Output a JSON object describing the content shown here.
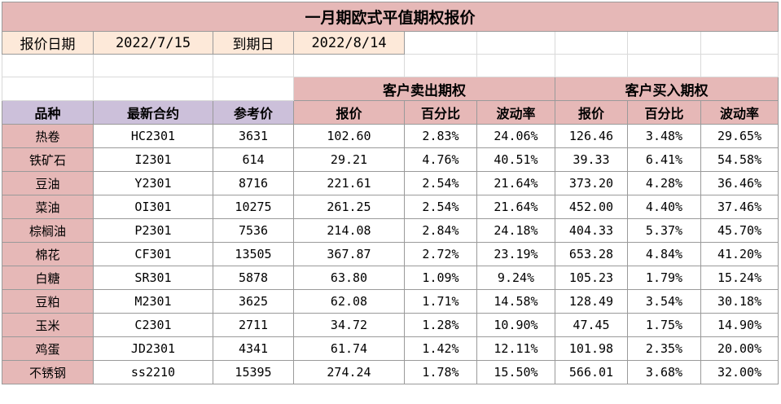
{
  "title": "一月期欧式平值期权报价",
  "quote_date_label": "报价日期",
  "quote_date": "2022/7/15",
  "expiry_label": "到期日",
  "expiry_date": "2022/8/14",
  "group_sell": "客户卖出期权",
  "group_buy": "客户买入期权",
  "headers": [
    "品种",
    "最新合约",
    "参考价",
    "报价",
    "百分比",
    "波动率",
    "报价",
    "百分比",
    "波动率"
  ],
  "rows": [
    {
      "name": "热卷",
      "contract": "HC2301",
      "ref": "3631",
      "s_quote": "102.60",
      "s_pct": "2.83%",
      "s_vol": "24.06%",
      "b_quote": "126.46",
      "b_pct": "3.48%",
      "b_vol": "29.65%"
    },
    {
      "name": "铁矿石",
      "contract": "I2301",
      "ref": "614",
      "s_quote": "29.21",
      "s_pct": "4.76%",
      "s_vol": "40.51%",
      "b_quote": "39.33",
      "b_pct": "6.41%",
      "b_vol": "54.58%"
    },
    {
      "name": "豆油",
      "contract": "Y2301",
      "ref": "8716",
      "s_quote": "221.61",
      "s_pct": "2.54%",
      "s_vol": "21.64%",
      "b_quote": "373.20",
      "b_pct": "4.28%",
      "b_vol": "36.46%"
    },
    {
      "name": "菜油",
      "contract": "OI301",
      "ref": "10275",
      "s_quote": "261.25",
      "s_pct": "2.54%",
      "s_vol": "21.64%",
      "b_quote": "452.00",
      "b_pct": "4.40%",
      "b_vol": "37.46%"
    },
    {
      "name": "棕榈油",
      "contract": "P2301",
      "ref": "7536",
      "s_quote": "214.08",
      "s_pct": "2.84%",
      "s_vol": "24.18%",
      "b_quote": "404.33",
      "b_pct": "5.37%",
      "b_vol": "45.70%"
    },
    {
      "name": "棉花",
      "contract": "CF301",
      "ref": "13505",
      "s_quote": "367.87",
      "s_pct": "2.72%",
      "s_vol": "23.19%",
      "b_quote": "653.28",
      "b_pct": "4.84%",
      "b_vol": "41.20%"
    },
    {
      "name": "白糖",
      "contract": "SR301",
      "ref": "5878",
      "s_quote": "63.80",
      "s_pct": "1.09%",
      "s_vol": "9.24%",
      "b_quote": "105.23",
      "b_pct": "1.79%",
      "b_vol": "15.24%"
    },
    {
      "name": "豆粕",
      "contract": "M2301",
      "ref": "3625",
      "s_quote": "62.08",
      "s_pct": "1.71%",
      "s_vol": "14.58%",
      "b_quote": "128.49",
      "b_pct": "3.54%",
      "b_vol": "30.18%"
    },
    {
      "name": "玉米",
      "contract": "C2301",
      "ref": "2711",
      "s_quote": "34.72",
      "s_pct": "1.28%",
      "s_vol": "10.90%",
      "b_quote": "47.45",
      "b_pct": "1.75%",
      "b_vol": "14.90%"
    },
    {
      "name": "鸡蛋",
      "contract": "JD2301",
      "ref": "4341",
      "s_quote": "61.74",
      "s_pct": "1.42%",
      "s_vol": "12.11%",
      "b_quote": "101.98",
      "b_pct": "2.35%",
      "b_vol": "20.00%"
    },
    {
      "name": "不锈钢",
      "contract": "ss2210",
      "ref": "15395",
      "s_quote": "274.24",
      "s_pct": "1.78%",
      "s_vol": "15.50%",
      "b_quote": "566.01",
      "b_pct": "3.68%",
      "b_vol": "32.00%"
    }
  ],
  "colors": {
    "title_bg": "#e6b8b7",
    "name_bg": "#e6b8b7",
    "info_bg": "#fde9d9",
    "header_bg": "#ccc0da",
    "grid": "#9a9a9a"
  }
}
